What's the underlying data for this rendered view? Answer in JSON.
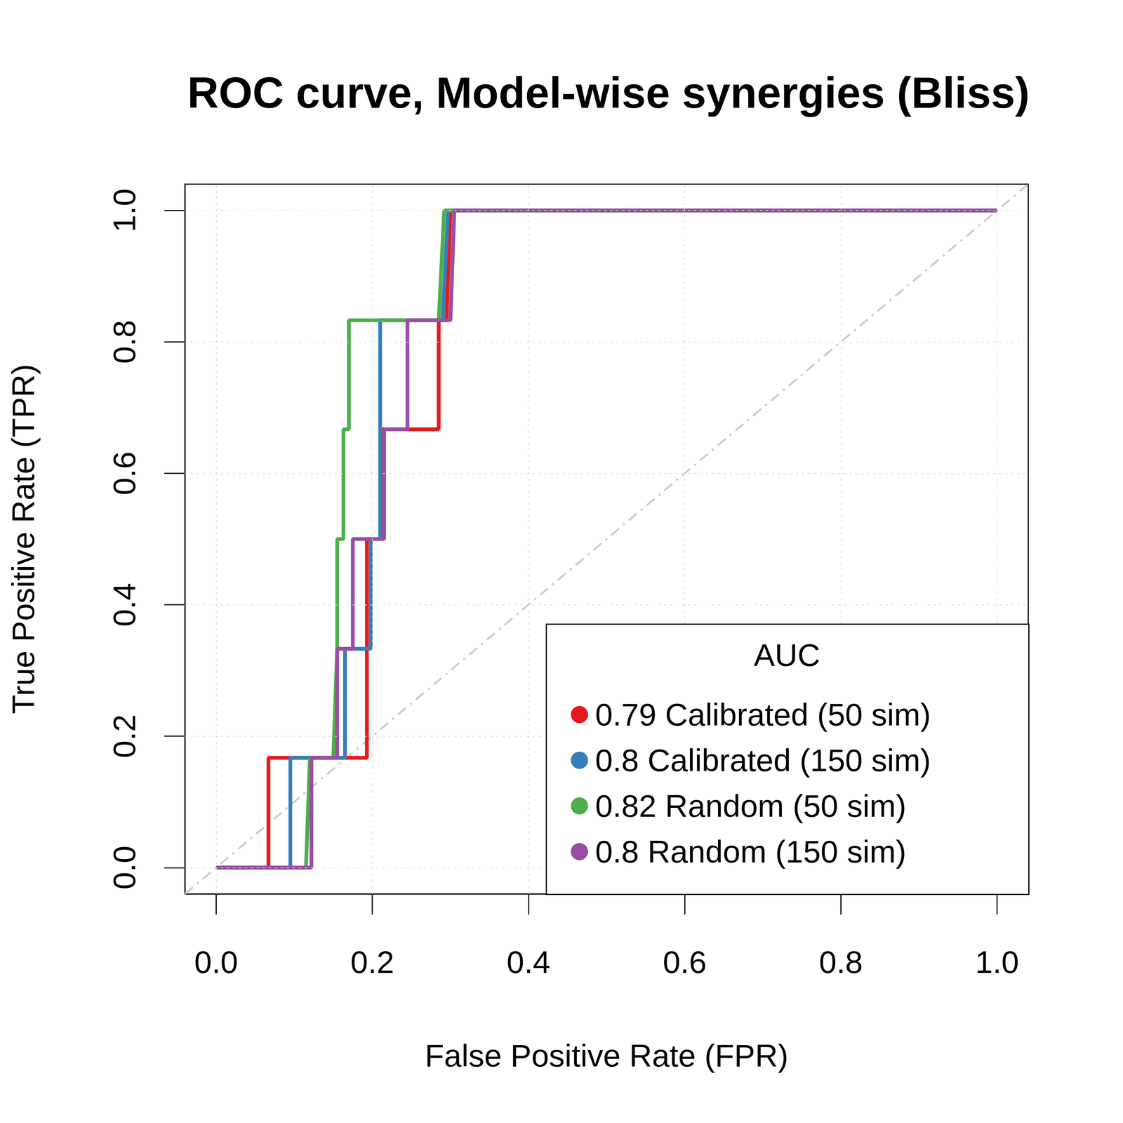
{
  "chart_data": {
    "type": "line",
    "title": "ROC curve, Model-wise synergies (Bliss)",
    "x_label": "False Positive Rate (FPR)",
    "y_label": "True Positive Rate (TPR)",
    "xlim": [
      -0.04,
      1.04
    ],
    "ylim": [
      -0.04,
      1.04
    ],
    "xticks": [
      {
        "value": 0,
        "label": "0.0"
      },
      0.2,
      0.4,
      0.6,
      0.8,
      {
        "value": 1,
        "label": "1.0"
      }
    ],
    "yticks": [
      {
        "value": 0,
        "label": "0.0"
      },
      0.2,
      0.4,
      0.6,
      0.8,
      {
        "value": 1,
        "label": "1.0"
      }
    ],
    "grid": true,
    "legend": "lower right",
    "legend_title": "AUC",
    "series": [
      {
        "name": "0.79 Calibrated (50 sim)",
        "color": "#E41A1C",
        "x": [
          0,
          0.067,
          0.067,
          0.193,
          0.193,
          0.213,
          0.213,
          0.285,
          0.285,
          0.295,
          0.3,
          1
        ],
        "values": [
          0,
          0,
          0.167,
          0.167,
          0.5,
          0.5,
          0.667,
          0.667,
          0.833,
          0.833,
          1,
          1
        ]
      },
      {
        "name": "0.8 Calibrated (150 sim)",
        "color": "#377EB8",
        "x": [
          0,
          0.095,
          0.095,
          0.165,
          0.165,
          0.198,
          0.198,
          0.21,
          0.21,
          0.29,
          0.297,
          1
        ],
        "values": [
          0,
          0,
          0.167,
          0.167,
          0.333,
          0.333,
          0.5,
          0.5,
          0.833,
          0.833,
          1,
          1
        ]
      },
      {
        "name": "0.82 Random (50 sim)",
        "color": "#4DAF4A",
        "x": [
          0,
          0.115,
          0.12,
          0.15,
          0.155,
          0.155,
          0.163,
          0.163,
          0.17,
          0.17,
          0.285,
          0.292,
          1
        ],
        "values": [
          0,
          0,
          0.167,
          0.167,
          0.333,
          0.5,
          0.5,
          0.667,
          0.667,
          0.833,
          0.833,
          1,
          1
        ]
      },
      {
        "name": "0.8 Random (150 sim)",
        "color": "#984EA3",
        "x": [
          0,
          0.122,
          0.122,
          0.155,
          0.155,
          0.175,
          0.175,
          0.215,
          0.215,
          0.245,
          0.245,
          0.3,
          0.305,
          1
        ],
        "values": [
          0,
          0,
          0.167,
          0.167,
          0.333,
          0.333,
          0.5,
          0.5,
          0.667,
          0.667,
          0.833,
          0.833,
          1,
          1
        ]
      }
    ]
  }
}
